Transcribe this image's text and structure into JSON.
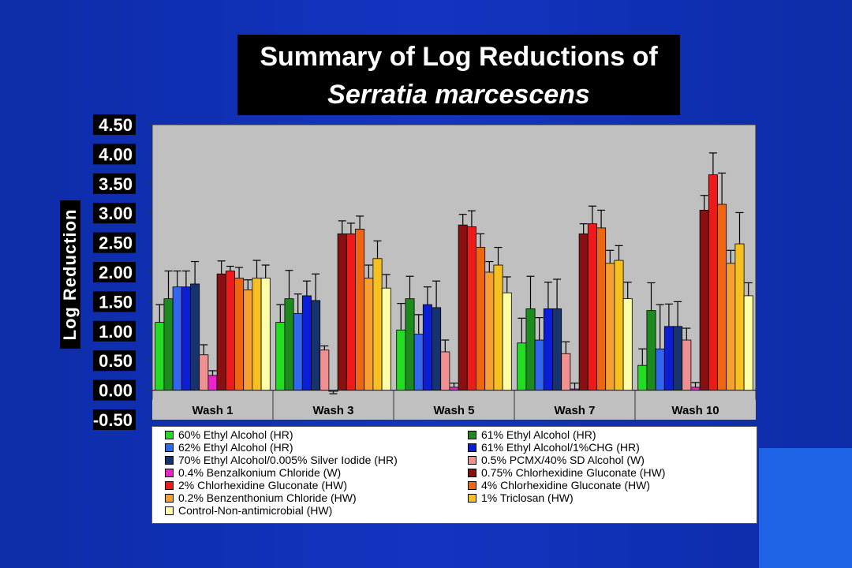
{
  "title": {
    "line1": "Summary of Log Reductions of",
    "line2": "Serratia marcescens"
  },
  "chart_data": {
    "type": "bar",
    "title": "Summary of Log Reductions of Serratia marcescens",
    "xlabel": "",
    "ylabel": "Log Reduction",
    "ylim": [
      -0.5,
      4.5
    ],
    "y_ticks": [
      "4.50",
      "4.00",
      "3.50",
      "3.00",
      "2.50",
      "2.00",
      "1.50",
      "1.00",
      "0.50",
      "0.00",
      "-0.50"
    ],
    "grid": false,
    "error_bars": true,
    "legend_position": "bottom",
    "categories": [
      "Wash 1",
      "Wash 3",
      "Wash 5",
      "Wash 7",
      "Wash 10"
    ],
    "series": [
      {
        "name": "60% Ethyl Alcohol (HR)",
        "color": "#22dd22",
        "values": [
          1.15,
          1.15,
          1.02,
          0.8,
          0.42
        ],
        "errors": [
          0.3,
          0.3,
          0.45,
          0.42,
          0.28
        ]
      },
      {
        "name": "61% Ethyl Alcohol (HR)",
        "color": "#1c8a1c",
        "values": [
          1.55,
          1.55,
          1.55,
          1.38,
          1.35
        ],
        "errors": [
          0.47,
          0.48,
          0.38,
          0.55,
          0.47
        ]
      },
      {
        "name": "62% Ethyl Alcohol (HR)",
        "color": "#3366ee",
        "values": [
          1.75,
          1.3,
          0.95,
          0.85,
          0.7
        ],
        "errors": [
          0.27,
          0.33,
          0.33,
          0.38,
          0.75
        ]
      },
      {
        "name": "61% Ethyl Alcohol/1%CHG (HR)",
        "color": "#0a1ed8",
        "values": [
          1.75,
          1.6,
          1.45,
          1.38,
          1.08
        ],
        "errors": [
          0.27,
          0.25,
          0.3,
          0.45,
          0.38
        ]
      },
      {
        "name": "70% Ethyl Alcohol/0.005% Silver Iodide (HR)",
        "color": "#16336e",
        "values": [
          1.8,
          1.52,
          1.4,
          1.38,
          1.08
        ],
        "errors": [
          0.38,
          0.45,
          0.45,
          0.5,
          0.42
        ]
      },
      {
        "name": "0.5% PCMX/40% SD Alcohol (W)",
        "color": "#f09090",
        "values": [
          0.6,
          0.68,
          0.65,
          0.62,
          0.85
        ],
        "errors": [
          0.17,
          0.07,
          0.2,
          0.2,
          0.2
        ]
      },
      {
        "name": "0.4% Benzalkonium Chloride (W)",
        "color": "#ee22cc",
        "values": [
          0.25,
          -0.02,
          0.05,
          0.02,
          0.05
        ],
        "errors": [
          0.08,
          0.04,
          0.07,
          0.1,
          0.08
        ]
      },
      {
        "name": "0.75% Chlorhexidine Gluconate (HW)",
        "color": "#881010",
        "values": [
          1.97,
          2.65,
          2.8,
          2.65,
          3.05
        ],
        "errors": [
          0.22,
          0.22,
          0.18,
          0.17,
          0.25
        ]
      },
      {
        "name": "2% Chlorhexidine Gluconate (HW)",
        "color": "#ee1a1a",
        "values": [
          2.02,
          2.65,
          2.77,
          2.82,
          3.65
        ],
        "errors": [
          0.08,
          0.18,
          0.27,
          0.3,
          0.37
        ]
      },
      {
        "name": "4% Chlorhexidine Gluconate (HW)",
        "color": "#ee6611",
        "values": [
          1.9,
          2.73,
          2.42,
          2.75,
          3.15
        ],
        "errors": [
          0.18,
          0.22,
          0.23,
          0.3,
          0.53
        ]
      },
      {
        "name": "0.2% Benzenthonium Chloride (HW)",
        "color": "#f5a030",
        "values": [
          1.7,
          1.9,
          2.0,
          2.15,
          2.15
        ],
        "errors": [
          0.17,
          0.22,
          0.18,
          0.22,
          0.22
        ]
      },
      {
        "name": "1% Triclosan (HW)",
        "color": "#f5c020",
        "values": [
          1.9,
          2.23,
          2.12,
          2.2,
          2.48
        ],
        "errors": [
          0.3,
          0.3,
          0.3,
          0.25,
          0.53
        ]
      },
      {
        "name": "Control-Non-antimicrobial (HW)",
        "color": "#ffffa8",
        "values": [
          1.9,
          1.73,
          1.65,
          1.55,
          1.6
        ],
        "errors": [
          0.22,
          0.23,
          0.27,
          0.28,
          0.22
        ]
      }
    ]
  },
  "colors": {
    "background": "#1234c0",
    "plot_area": "#c0c0c0",
    "title_box": "#000000",
    "accent_block": "#1f63e6"
  }
}
